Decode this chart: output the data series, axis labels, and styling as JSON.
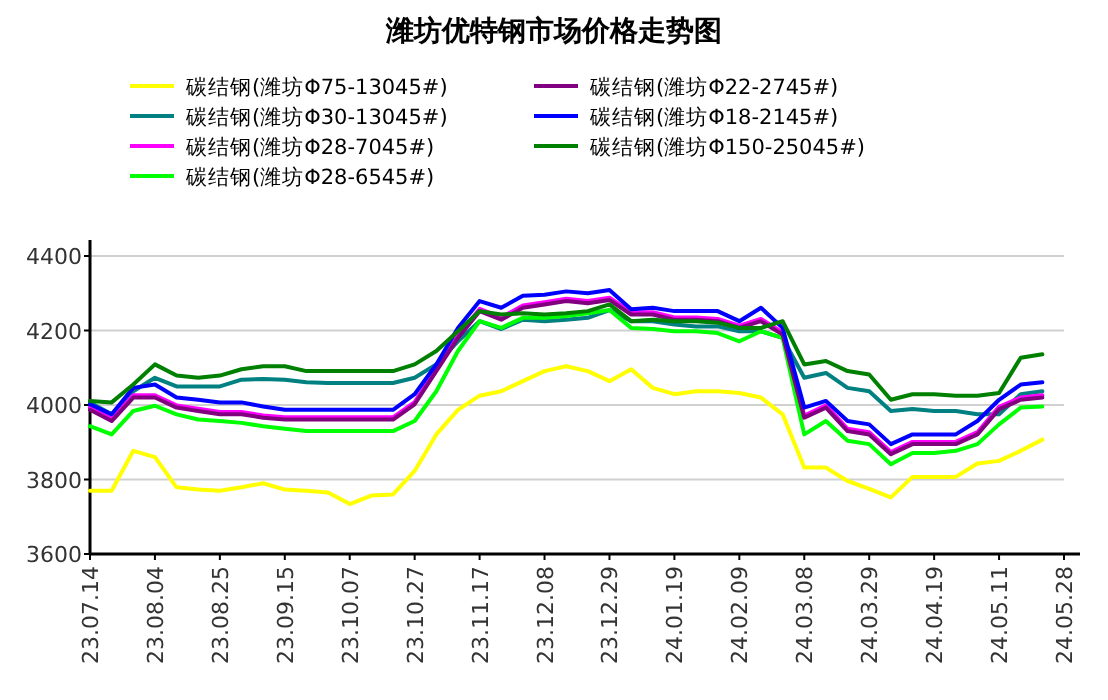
{
  "chart_data": {
    "type": "line",
    "title": "潍坊优特钢市场价格走势图",
    "categories": [
      "23.07.14",
      null,
      null,
      "23.08.04",
      null,
      null,
      "23.08.25",
      null,
      null,
      "23.09.15",
      null,
      null,
      "23.10.07",
      null,
      null,
      "23.10.27",
      null,
      null,
      "23.11.17",
      null,
      null,
      "23.12.08",
      null,
      null,
      "23.12.29",
      null,
      null,
      "24.01.19",
      null,
      null,
      "24.02.09",
      null,
      null,
      "24.03.08",
      null,
      null,
      "24.03.29",
      null,
      null,
      "24.04.19",
      null,
      null,
      "24.05.11",
      null,
      null,
      "24.05.28"
    ],
    "series": [
      {
        "name": "碳结钢(潍坊Φ75-13045#)",
        "color": "#ffff00",
        "values": [
          3770,
          3770,
          3877,
          3860,
          3779,
          3773,
          3770,
          3779,
          3790,
          3773,
          3770,
          3765,
          3734,
          3757,
          3760,
          3823,
          3921,
          3987,
          4025,
          4037,
          4064,
          4091,
          4104,
          4091,
          4064,
          4096,
          4046,
          4029,
          4037,
          4037,
          4032,
          4020,
          3975,
          3832,
          3832,
          3796,
          3775,
          3752,
          3807,
          3807,
          3807,
          3843,
          3850,
          3877,
          3907,
          null
        ]
      },
      {
        "name": "碳结钢(潍坊Φ30-13045#)",
        "color": "#008080",
        "values": [
          4007,
          3975,
          4037,
          4073,
          4050,
          4050,
          4050,
          4068,
          4070,
          4068,
          4061,
          4059,
          4059,
          4059,
          4059,
          4073,
          4109,
          4171,
          4225,
          4204,
          4229,
          4225,
          4229,
          4234,
          4255,
          4225,
          4225,
          4216,
          4211,
          4211,
          4198,
          4198,
          4180,
          4073,
          4086,
          4046,
          4037,
          3984,
          3989,
          3984,
          3984,
          3975,
          3975,
          4029,
          4037,
          null
        ]
      },
      {
        "name": "碳结钢(潍坊Φ28-7045#)",
        "color": "#ff00ff",
        "values": [
          3993,
          3963,
          4026,
          4026,
          3999,
          3990,
          3981,
          3981,
          3972,
          3967,
          3967,
          3967,
          3967,
          3967,
          3967,
          4008,
          4097,
          4186,
          4258,
          4235,
          4267,
          4276,
          4285,
          4279,
          4288,
          4249,
          4249,
          4235,
          4235,
          4231,
          4213,
          4231,
          4195,
          3972,
          3999,
          3936,
          3927,
          3874,
          3901,
          3901,
          3901,
          3927,
          3995,
          4020,
          4026,
          null
        ]
      },
      {
        "name": "碳结钢(潍坊Φ28-6545#)",
        "color": "#00ff00",
        "values": [
          3943,
          3921,
          3984,
          3998,
          3975,
          3961,
          3957,
          3952,
          3943,
          3936,
          3930,
          3930,
          3930,
          3930,
          3930,
          3957,
          4037,
          4145,
          4225,
          4207,
          4234,
          4234,
          4239,
          4246,
          4255,
          4207,
          4204,
          4198,
          4198,
          4193,
          4171,
          4198,
          4180,
          3921,
          3957,
          3904,
          3895,
          3841,
          3871,
          3871,
          3877,
          3895,
          3948,
          3993,
          3996,
          null
        ]
      },
      {
        "name": "碳结钢(潍坊Φ22-2745#)",
        "color": "#800080",
        "values": [
          3987,
          3957,
          4020,
          4020,
          3993,
          3984,
          3975,
          3975,
          3966,
          3961,
          3961,
          3961,
          3961,
          3961,
          3961,
          4002,
          4091,
          4180,
          4252,
          4229,
          4261,
          4270,
          4279,
          4273,
          4282,
          4243,
          4243,
          4229,
          4229,
          4225,
          4207,
          4225,
          4189,
          3966,
          3993,
          3930,
          3921,
          3868,
          3895,
          3895,
          3895,
          3921,
          3989,
          4014,
          4020,
          null
        ]
      },
      {
        "name": "碳结钢(潍坊Φ18-2145#)",
        "color": "#0000ff",
        "values": [
          4002,
          3975,
          4046,
          4055,
          4020,
          4014,
          4007,
          4007,
          3996,
          3987,
          3987,
          3987,
          3987,
          3987,
          3987,
          4029,
          4109,
          4207,
          4279,
          4261,
          4293,
          4296,
          4305,
          4300,
          4309,
          4257,
          4261,
          4252,
          4252,
          4252,
          4225,
          4261,
          4207,
          3993,
          4011,
          3957,
          3948,
          3895,
          3921,
          3921,
          3921,
          3957,
          4014,
          4055,
          4061,
          null
        ]
      },
      {
        "name": "碳结钢(潍坊Φ150-25045#)",
        "color": "#008000",
        "values": [
          4011,
          4007,
          4055,
          4109,
          4079,
          4073,
          4079,
          4096,
          4104,
          4104,
          4091,
          4091,
          4091,
          4091,
          4091,
          4109,
          4145,
          4198,
          4252,
          4243,
          4246,
          4243,
          4246,
          4252,
          4270,
          4225,
          4229,
          4225,
          4225,
          4221,
          4207,
          4207,
          4225,
          4109,
          4118,
          4091,
          4082,
          4014,
          4029,
          4029,
          4025,
          4025,
          4032,
          4127,
          4136,
          null
        ]
      }
    ],
    "ylim": [
      3600,
      4400
    ],
    "yticks": [
      3600,
      3800,
      4000,
      4200,
      4400
    ],
    "grid": "y",
    "legend": "top"
  }
}
